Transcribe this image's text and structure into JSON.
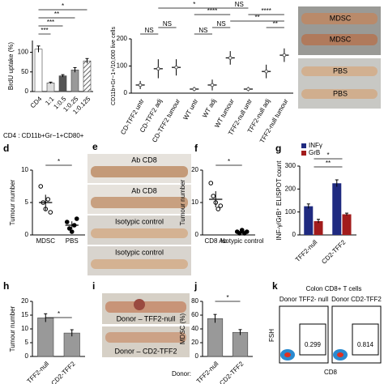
{
  "chart_data": [
    {
      "type": "bar",
      "y_label": "BrdU uptake (%)",
      "categories": [
        "CD4",
        "1:1",
        "1:0.5",
        "1:0.25",
        "1:0.125"
      ],
      "values": [
        108,
        22,
        40,
        55,
        78
      ],
      "errors": [
        8,
        2,
        3,
        6,
        6
      ],
      "colors": [
        "#ffffff",
        "#dddddd",
        "#555555",
        "#999999",
        "#bbbbbb"
      ],
      "ylim": [
        0,
        130
      ],
      "yticks": [
        0,
        50,
        100
      ],
      "annotations": [
        "*",
        "**",
        "***",
        "***"
      ],
      "footnote": "CD4 : CD11b+Gr−1+CD80+"
    },
    {
      "type": "dot",
      "y_label": "CD11b+Gr−1+/10,000 live cells",
      "categories": [
        "CD-TFF2 untr",
        "CD-TFF2 adj",
        "CD-TFF2 tumour",
        "WT untr",
        "WT adj",
        "WT tumour",
        "TFF2-null untr",
        "TFF2-null adj",
        "TFF2-null tumour"
      ],
      "values": [
        30,
        90,
        95,
        15,
        30,
        130,
        15,
        80,
        140
      ],
      "errors": [
        15,
        35,
        30,
        8,
        20,
        25,
        8,
        25,
        25
      ],
      "ylim": [
        0,
        200
      ],
      "yticks": [
        0,
        100,
        200
      ],
      "annotations": [
        "NS",
        "NS",
        "*",
        "****",
        "NS",
        "NS",
        "**",
        "NS",
        "****",
        "**"
      ]
    },
    {
      "type": "dot",
      "y_label": "Tumour number",
      "categories": [
        "MDSC",
        "PBS"
      ],
      "values": [
        5,
        1.5
      ],
      "errors": [
        1.2,
        0.6
      ],
      "points": [
        [
          7.5,
          5,
          4,
          5.5,
          3.5
        ],
        [
          2,
          1,
          0.5,
          1.5,
          2.5
        ]
      ],
      "ylim": [
        0,
        10
      ],
      "yticks": [
        0,
        5,
        10
      ],
      "annotations": [
        "*"
      ]
    },
    {
      "type": "dot",
      "y_label": "Tumour number",
      "categories": [
        "CD8 Ab",
        "Isotypic control"
      ],
      "values": [
        11,
        1
      ],
      "errors": [
        2.5,
        0.5
      ],
      "points": [
        [
          16,
          12,
          10,
          8,
          9
        ],
        [
          1,
          0.5,
          1.5,
          0.5,
          1
        ]
      ],
      "ylim": [
        0,
        20
      ],
      "yticks": [
        0,
        10,
        20
      ],
      "annotations": [
        "*"
      ]
    },
    {
      "type": "bar",
      "y_label": "INF-γ/GrB⁺ ELISPOT count",
      "categories": [
        "TFF2-null",
        "CD2-TFF2"
      ],
      "series": [
        {
          "name": "INFγ",
          "color": "#1f2a80",
          "values": [
            125,
            225
          ],
          "errors": [
            10,
            15
          ]
        },
        {
          "name": "GrB",
          "color": "#a21c1c",
          "values": [
            60,
            90
          ],
          "errors": [
            8,
            5
          ]
        }
      ],
      "ylim": [
        0,
        300
      ],
      "yticks": [
        0,
        100,
        200,
        300
      ],
      "annotations": [
        "*",
        "**"
      ]
    },
    {
      "type": "bar",
      "y_label": "Tumour number",
      "categories": [
        "TFF2-null",
        "CD2-TFF2"
      ],
      "values": [
        14,
        8.5
      ],
      "errors": [
        1.5,
        1.2
      ],
      "colors": [
        "#999999",
        "#999999"
      ],
      "ylim": [
        0,
        20
      ],
      "yticks": [
        0,
        5,
        10,
        15,
        20
      ],
      "annotations": [
        "*"
      ]
    },
    {
      "type": "bar",
      "y_label": "MDSC (%)",
      "categories": [
        "TFF2-null",
        "CD2-TFF2"
      ],
      "values": [
        55,
        35
      ],
      "errors": [
        6,
        4
      ],
      "colors": [
        "#999999",
        "#999999"
      ],
      "ylim": [
        0,
        80
      ],
      "yticks": [
        0,
        20,
        40,
        60,
        80
      ],
      "annotations": [
        "*"
      ],
      "x_prefix": "Donor:"
    }
  ],
  "panel_letters": [
    "d",
    "e",
    "f",
    "g",
    "h",
    "i",
    "j",
    "k"
  ],
  "photos": {
    "top_right": [
      "MDSC",
      "MDSC",
      "PBS",
      "PBS"
    ],
    "e": [
      "Ab CD8",
      "Ab CD8",
      "Isotypic control",
      "Isotypic control"
    ],
    "i": [
      "Donor – TFF2-null",
      "Donor – CD2-TFF2"
    ]
  },
  "flow": {
    "title": "Colon CD8+ T cells",
    "donors": [
      "Donor TFF2- null",
      "Donor CD2-TFF2"
    ],
    "y_label": "FSH",
    "x_label": "CD8",
    "values": [
      0.299,
      0.814
    ]
  }
}
